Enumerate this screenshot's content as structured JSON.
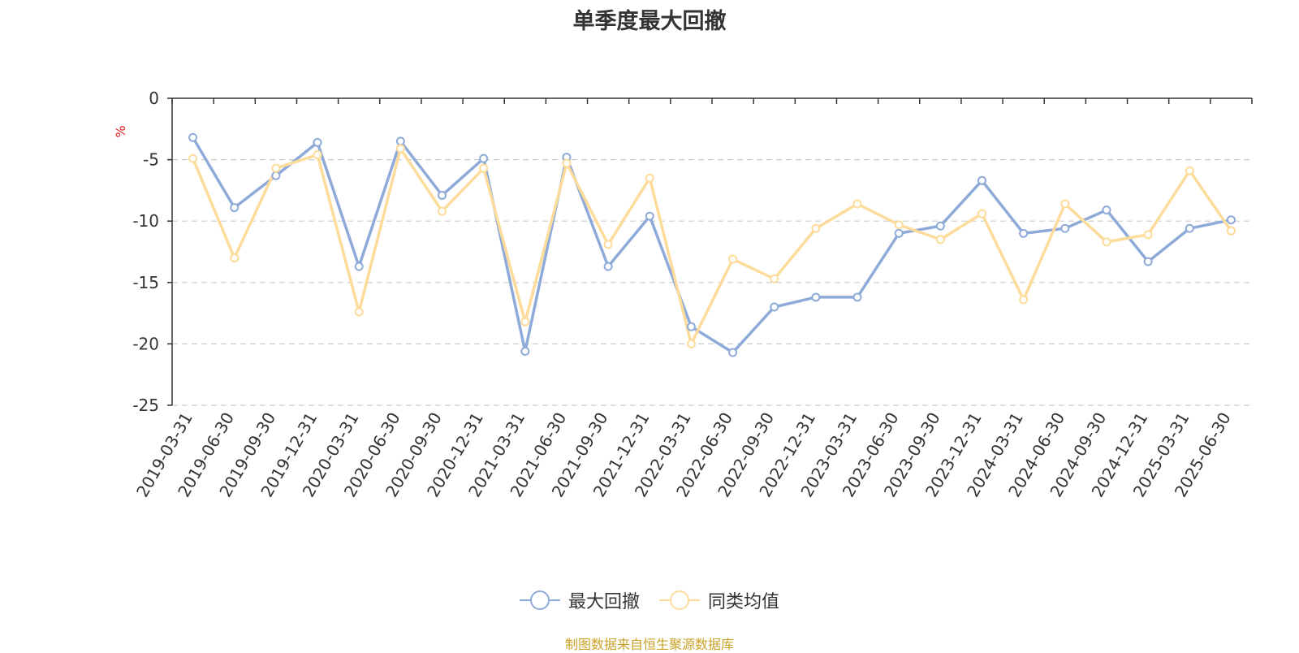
{
  "title": "单季度最大回撤",
  "source_note": "制图数据来自恒生聚源数据库",
  "colors": {
    "series1": "#8eaad8",
    "series2": "#fddc9b",
    "ylabel": "#e02020",
    "source": "#c9a227"
  },
  "chart_data": {
    "type": "line",
    "title": "单季度最大回撤",
    "ylabel": "%",
    "xlabel": "",
    "ylim": [
      -25,
      0
    ],
    "yticks": [
      0,
      -5,
      -10,
      -15,
      -20,
      -25
    ],
    "grid": true,
    "legend_position": "bottom",
    "categories": [
      "2019-03-31",
      "2019-06-30",
      "2019-09-30",
      "2019-12-31",
      "2020-03-31",
      "2020-06-30",
      "2020-09-30",
      "2020-12-31",
      "2021-03-31",
      "2021-06-30",
      "2021-09-30",
      "2021-12-31",
      "2022-03-31",
      "2022-06-30",
      "2022-09-30",
      "2022-12-31",
      "2023-03-31",
      "2023-06-30",
      "2023-09-30",
      "2023-12-31",
      "2024-03-31",
      "2024-06-30",
      "2024-09-30",
      "2024-12-31",
      "2025-03-31",
      "2025-06-30"
    ],
    "series": [
      {
        "name": "最大回撤",
        "values": [
          -3.2,
          -8.9,
          -6.3,
          -3.6,
          -13.7,
          -3.5,
          -7.9,
          -4.9,
          -20.6,
          -4.8,
          -13.7,
          -9.6,
          -18.6,
          -20.7,
          -17.0,
          -16.2,
          -16.2,
          -11.0,
          -10.4,
          -6.7,
          -11.0,
          -10.6,
          -9.1,
          -13.3,
          -10.6,
          -9.9
        ]
      },
      {
        "name": "同类均值",
        "values": [
          -4.9,
          -13.0,
          -5.7,
          -4.6,
          -17.4,
          -4.1,
          -9.2,
          -5.7,
          -18.2,
          -5.3,
          -11.9,
          -6.5,
          -20.0,
          -13.1,
          -14.7,
          -10.6,
          -8.6,
          -10.3,
          -11.5,
          -9.4,
          -16.4,
          -8.6,
          -11.7,
          -11.1,
          -5.9,
          -10.8
        ]
      }
    ]
  }
}
